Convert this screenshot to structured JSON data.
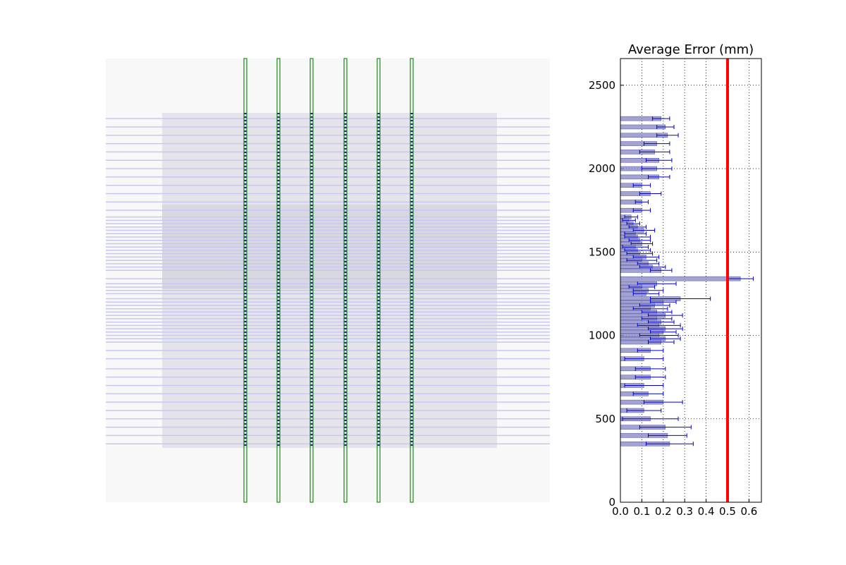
{
  "chart_data": {
    "type": "barh",
    "title": "Average Error (mm)",
    "y": [
      2300,
      2250,
      2200,
      2150,
      2100,
      2050,
      2000,
      1950,
      1900,
      1850,
      1800,
      1750,
      1710,
      1690,
      1670,
      1650,
      1630,
      1610,
      1590,
      1570,
      1550,
      1530,
      1510,
      1490,
      1470,
      1450,
      1430,
      1410,
      1390,
      1340,
      1310,
      1290,
      1270,
      1250,
      1220,
      1200,
      1180,
      1160,
      1140,
      1120,
      1100,
      1080,
      1060,
      1040,
      1020,
      1000,
      980,
      960,
      910,
      860,
      800,
      750,
      700,
      650,
      600,
      550,
      500,
      450,
      400,
      350
    ],
    "series": [
      {
        "color": "#8c8cc8",
        "error_color": "#0000cc",
        "values": [
          0.19,
          0.21,
          0.22,
          0.17,
          0.16,
          0.18,
          0.17,
          0.18,
          0.1,
          0.14,
          0.1,
          0.1,
          0.05,
          0.04,
          0.06,
          0.08,
          0.11,
          0.07,
          0.08,
          0.09,
          0.1,
          0.07,
          0.08,
          0.09,
          0.12,
          0.1,
          0.13,
          0.15,
          0.19,
          0.56,
          0.17,
          0.1,
          0.13,
          0.12,
          0.28,
          0.2,
          0.16,
          0.14,
          0.17,
          0.21,
          0.17,
          0.19,
          0.18,
          0.21,
          0.2,
          0.18,
          0.21,
          0.19,
          0.14,
          0.11,
          0.14,
          0.14,
          0.11,
          0.13,
          0.2,
          0.11,
          0.14,
          0.21,
          0.22,
          0.23
        ],
        "errors": [
          0.04,
          0.04,
          0.05,
          0.06,
          0.07,
          0.06,
          0.07,
          0.05,
          0.04,
          0.05,
          0.03,
          0.04,
          0.03,
          0.03,
          0.03,
          0.04,
          0.05,
          0.05,
          0.06,
          0.05,
          0.05,
          0.06,
          0.06,
          0.06,
          0.06,
          0.07,
          0.05,
          0.06,
          0.05,
          0.06,
          0.09,
          0.06,
          0.07,
          0.06,
          0.14,
          0.06,
          0.07,
          0.08,
          0.07,
          0.08,
          0.07,
          0.06,
          0.1,
          0.08,
          0.06,
          0.09,
          0.07,
          0.06,
          0.06,
          0.09,
          0.07,
          0.07,
          0.09,
          0.07,
          0.09,
          0.08,
          0.13,
          0.12,
          0.09,
          0.11
        ]
      }
    ],
    "xlim": [
      0,
      0.658
    ],
    "ylim": [
      0,
      2660
    ],
    "xticks": [
      {
        "value": 0,
        "label": "0.0"
      },
      0.1,
      0.2,
      0.3,
      0.4,
      0.5,
      0.6
    ],
    "yticks": [
      0,
      500,
      1000,
      1500,
      2000,
      2500
    ],
    "grid": true,
    "reference_line": 0.5,
    "reference_color": "#ff0000"
  }
}
